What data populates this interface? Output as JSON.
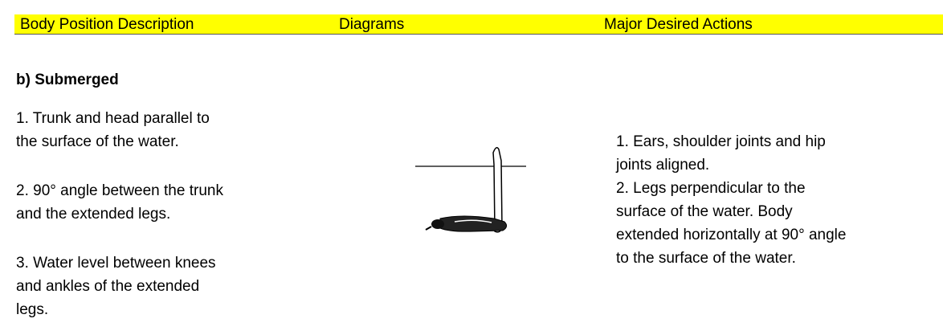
{
  "header": {
    "columns": [
      "Body Position Description",
      "Diagrams",
      "Major Desired Actions"
    ]
  },
  "section_title": "b)  Submerged",
  "left": {
    "paragraphs": [
      [
        "1. Trunk and head parallel to",
        "the surface of the water."
      ],
      [
        "2. 90° angle between the trunk",
        "and the extended legs."
      ],
      [
        "3. Water level between knees",
        "and ankles of the extended",
        "legs."
      ]
    ]
  },
  "right": {
    "paragraphs": [
      [
        "1. Ears, shoulder joints and hip",
        "joints aligned."
      ],
      [
        "2. Legs perpendicular to the",
        "surface of the water. Body",
        "extended horizontally at 90° angle",
        "to the surface of the water."
      ]
    ]
  }
}
